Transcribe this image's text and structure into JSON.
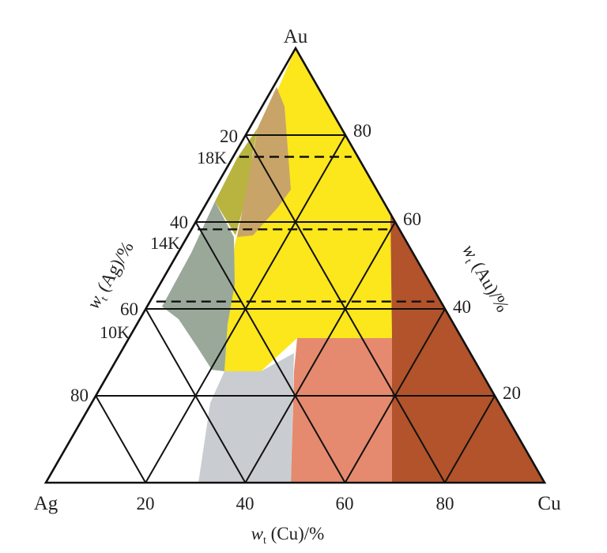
{
  "vertices": {
    "top": "Au",
    "left": "Ag",
    "right": "Cu"
  },
  "ticks": {
    "bottom": [
      "20",
      "40",
      "60",
      "80"
    ],
    "left": [
      "20",
      "40",
      "60",
      "80"
    ],
    "right": [
      "80",
      "60",
      "40",
      "20"
    ]
  },
  "karat_lines": [
    {
      "label": "18K",
      "au_fraction": 0.75
    },
    {
      "label": "14K",
      "au_fraction": 0.583
    },
    {
      "label": "10K",
      "au_fraction": 0.417
    }
  ],
  "axes": {
    "bottom": {
      "sym": "w",
      "sub": "t",
      "rest": " (Cu)/%"
    },
    "left": {
      "sym": "w",
      "sub": "t",
      "rest": " (Ag)/%"
    },
    "right": {
      "sym": "w",
      "sub": "t",
      "rest": " (Au)/%"
    }
  },
  "colors": {
    "yellow": "#fce61c",
    "tan": "#c9a468",
    "olive": "#b9b340",
    "gray_green": "#9aa89a",
    "light_gray": "#c9cdd2",
    "salmon": "#e58a6e",
    "brown": "#b2532b",
    "line": "#111111"
  }
}
